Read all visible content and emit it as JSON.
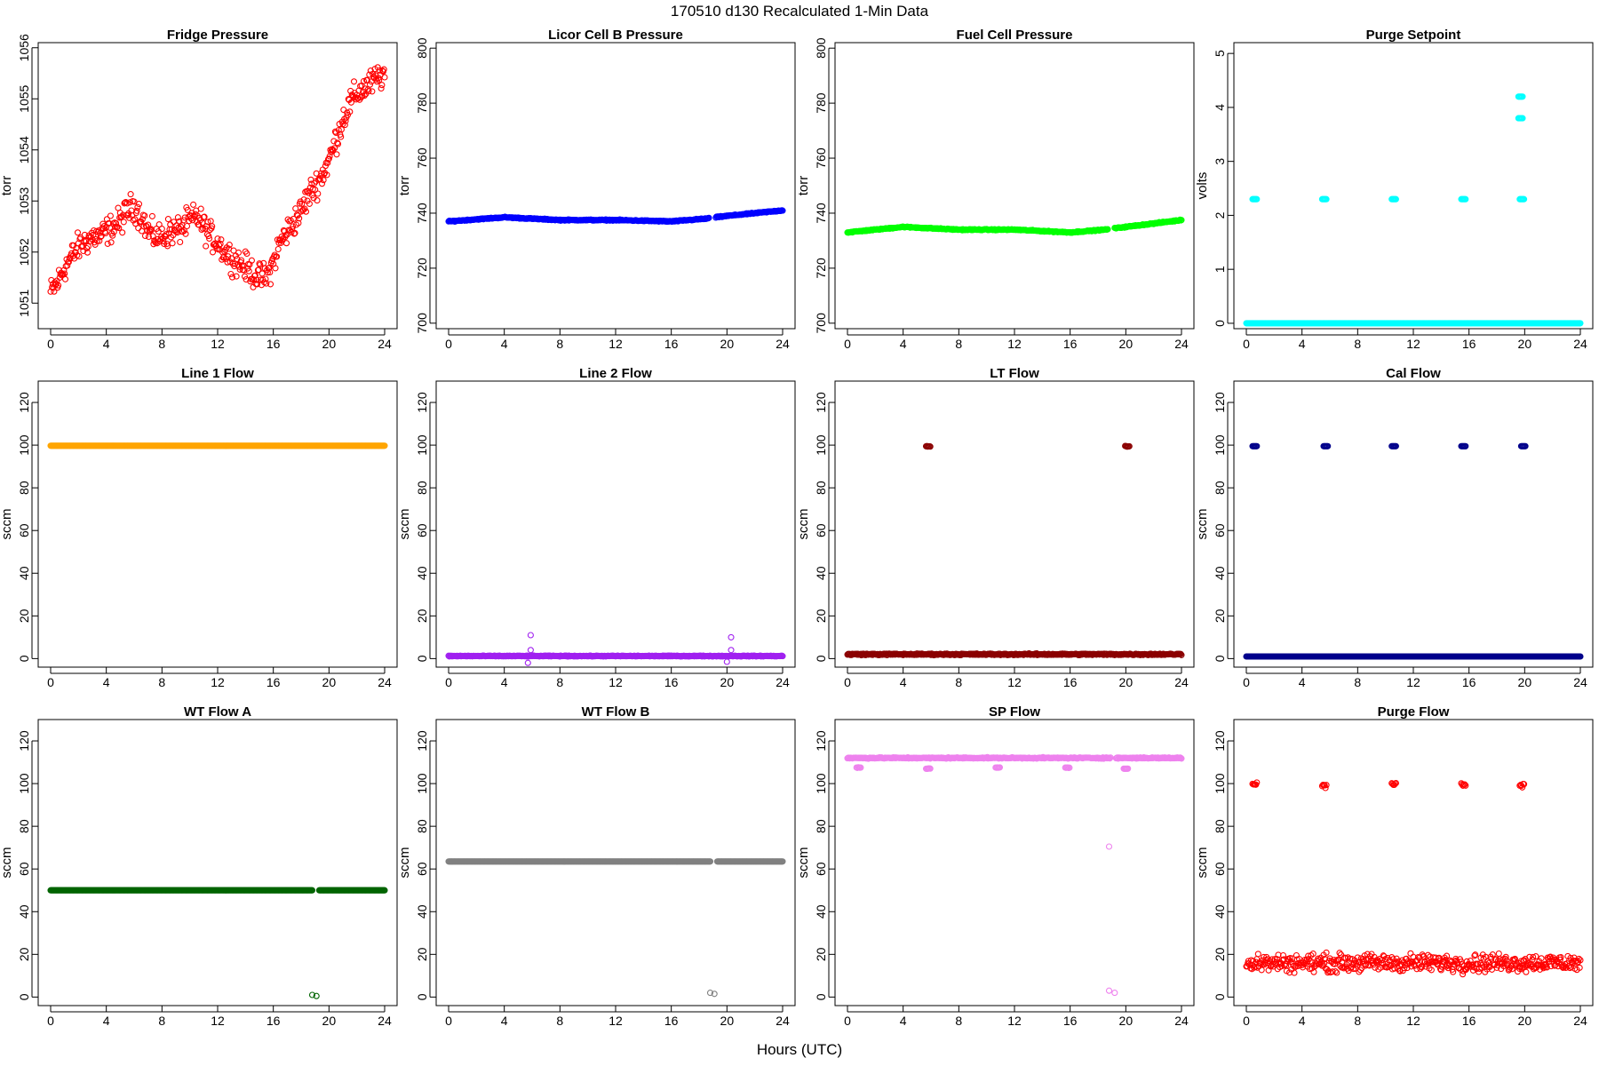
{
  "figure": {
    "title": "170510   d130   Recalculated 1-Min Data",
    "xlabel": "Hours (UTC)"
  },
  "chart_data": [
    {
      "type": "scatter",
      "title": "Fridge Pressure",
      "ylabel": "torr",
      "color": "#ff0000",
      "xlim": [
        0,
        24
      ],
      "xticks": [
        0,
        4,
        8,
        12,
        16,
        20,
        24
      ],
      "ylim": [
        1050.5,
        1056.1
      ],
      "yticks": [
        1051,
        1052,
        1053,
        1054,
        1055,
        1056
      ],
      "x": [
        0,
        0.5,
        1,
        1.5,
        2,
        2.5,
        3,
        3.5,
        4,
        4.5,
        5,
        5.5,
        6,
        6.5,
        7,
        7.5,
        8,
        8.5,
        9,
        9.5,
        10,
        10.5,
        11,
        11.5,
        12,
        12.5,
        13,
        13.5,
        14,
        14.5,
        15,
        15.5,
        16,
        16.5,
        17,
        17.5,
        18,
        18.5,
        19,
        19.5,
        20,
        20.5,
        21,
        21.5,
        22,
        22.5,
        23,
        23.5,
        24
      ],
      "y": [
        1051.2,
        1051.4,
        1051.7,
        1051.9,
        1052.1,
        1052.2,
        1052.3,
        1052.3,
        1052.4,
        1052.5,
        1052.6,
        1052.8,
        1052.9,
        1052.7,
        1052.4,
        1052.3,
        1052.3,
        1052.4,
        1052.4,
        1052.5,
        1052.6,
        1052.7,
        1052.5,
        1052.3,
        1052.2,
        1052.0,
        1051.9,
        1051.8,
        1051.7,
        1051.6,
        1051.5,
        1051.5,
        1051.8,
        1052.2,
        1052.4,
        1052.6,
        1052.8,
        1053.1,
        1053.3,
        1053.5,
        1053.8,
        1054.2,
        1054.6,
        1054.9,
        1055.1,
        1055.2,
        1055.3,
        1055.4,
        1055.5
      ],
      "spread": 0.3
    },
    {
      "type": "scatter",
      "title": "Licor Cell B Pressure",
      "ylabel": "torr",
      "color": "#0000ff",
      "xlim": [
        0,
        24
      ],
      "xticks": [
        0,
        4,
        8,
        12,
        16,
        20,
        24
      ],
      "ylim": [
        698,
        802
      ],
      "yticks": [
        700,
        720,
        740,
        760,
        780,
        800
      ],
      "x": [
        0,
        4,
        8,
        12,
        16,
        18.5,
        19.2,
        20,
        24
      ],
      "y": [
        737,
        738.5,
        737.5,
        737.5,
        737,
        738,
        738.5,
        739,
        741
      ],
      "gap": [
        18.7,
        19.2
      ],
      "spread": 0.2
    },
    {
      "type": "scatter",
      "title": "Fuel Cell Pressure",
      "ylabel": "torr",
      "color": "#00ff00",
      "xlim": [
        0,
        24
      ],
      "xticks": [
        0,
        4,
        8,
        12,
        16,
        20,
        24
      ],
      "ylim": [
        698,
        802
      ],
      "yticks": [
        700,
        720,
        740,
        760,
        780,
        800
      ],
      "x": [
        0,
        4,
        8,
        12,
        16,
        18.5,
        19.2,
        20,
        24
      ],
      "y": [
        733,
        735,
        734,
        734,
        733,
        734,
        734.5,
        735,
        737.5
      ],
      "gap": [
        18.7,
        19.2
      ],
      "spread": 0.2
    },
    {
      "type": "scatter",
      "title": "Purge Setpoint",
      "ylabel": "volts",
      "color": "#00ffff",
      "xlim": [
        0,
        24
      ],
      "xticks": [
        0,
        4,
        8,
        12,
        16,
        20,
        24
      ],
      "ylim": [
        -0.1,
        5.2
      ],
      "yticks": [
        0,
        1,
        2,
        3,
        4,
        5
      ],
      "x": [
        0,
        24
      ],
      "y": [
        0,
        0
      ],
      "clusters": [
        {
          "x": 0.6,
          "y": 2.3
        },
        {
          "x": 5.6,
          "y": 2.3
        },
        {
          "x": 10.6,
          "y": 2.3
        },
        {
          "x": 15.6,
          "y": 2.3
        },
        {
          "x": 19.8,
          "y": 2.3
        },
        {
          "x": 19.7,
          "y": 4.2
        },
        {
          "x": 19.7,
          "y": 3.8
        }
      ],
      "spread": 0
    },
    {
      "type": "scatter",
      "title": "Line 1 Flow",
      "ylabel": "sccm",
      "color": "#ffa500",
      "xlim": [
        0,
        24
      ],
      "xticks": [
        0,
        4,
        8,
        12,
        16,
        20,
        24
      ],
      "ylim": [
        -4,
        130
      ],
      "yticks": [
        0,
        20,
        40,
        60,
        80,
        100,
        120
      ],
      "x": [
        0,
        24
      ],
      "y": [
        99.7,
        99.7
      ],
      "spread": 0
    },
    {
      "type": "scatter",
      "title": "Line 2 Flow",
      "ylabel": "sccm",
      "color": "#a020f0",
      "xlim": [
        0,
        24
      ],
      "xticks": [
        0,
        4,
        8,
        12,
        16,
        20,
        24
      ],
      "ylim": [
        -4,
        130
      ],
      "yticks": [
        0,
        20,
        40,
        60,
        80,
        100,
        120
      ],
      "x": [
        0,
        24
      ],
      "y": [
        1.2,
        1.2
      ],
      "outliers": [
        [
          5.9,
          11
        ],
        [
          5.9,
          4
        ],
        [
          5.7,
          -2
        ],
        [
          20.3,
          10
        ],
        [
          20.3,
          4
        ],
        [
          20,
          -1.5
        ]
      ],
      "spread": 0.2
    },
    {
      "type": "scatter",
      "title": "LT Flow",
      "ylabel": "sccm",
      "color": "#8b0000",
      "xlim": [
        0,
        24
      ],
      "xticks": [
        0,
        4,
        8,
        12,
        16,
        20,
        24
      ],
      "ylim": [
        -4,
        130
      ],
      "yticks": [
        0,
        20,
        40,
        60,
        80,
        100,
        120
      ],
      "x": [
        0,
        24
      ],
      "y": [
        2,
        2
      ],
      "clusters": [
        {
          "x": 5.8,
          "y": 99.5
        },
        {
          "x": 20.1,
          "y": 99.5
        }
      ],
      "spread": 0.4
    },
    {
      "type": "scatter",
      "title": "Cal Flow",
      "ylabel": "sccm",
      "color": "#00008b",
      "xlim": [
        0,
        24
      ],
      "xticks": [
        0,
        4,
        8,
        12,
        16,
        20,
        24
      ],
      "ylim": [
        -4,
        130
      ],
      "yticks": [
        0,
        20,
        40,
        60,
        80,
        100,
        120
      ],
      "x": [
        0,
        24
      ],
      "y": [
        1,
        1
      ],
      "clusters": [
        {
          "x": 0.6,
          "y": 99.5
        },
        {
          "x": 5.7,
          "y": 99.5
        },
        {
          "x": 10.6,
          "y": 99.5
        },
        {
          "x": 15.6,
          "y": 99.5
        },
        {
          "x": 19.9,
          "y": 99.5
        }
      ],
      "spread": 0
    },
    {
      "type": "scatter",
      "title": "WT Flow A",
      "ylabel": "sccm",
      "color": "#006400",
      "xlim": [
        0,
        24
      ],
      "xticks": [
        0,
        4,
        8,
        12,
        16,
        20,
        24
      ],
      "ylim": [
        -4,
        130
      ],
      "yticks": [
        0,
        20,
        40,
        60,
        80,
        100,
        120
      ],
      "x": [
        0,
        24
      ],
      "y": [
        50,
        50
      ],
      "gap": [
        18.8,
        19.3
      ],
      "outliers": [
        [
          18.8,
          1
        ],
        [
          19.1,
          0.5
        ]
      ],
      "spread": 0
    },
    {
      "type": "scatter",
      "title": "WT Flow B",
      "ylabel": "sccm",
      "color": "#808080",
      "xlim": [
        0,
        24
      ],
      "xticks": [
        0,
        4,
        8,
        12,
        16,
        20,
        24
      ],
      "ylim": [
        -4,
        130
      ],
      "yticks": [
        0,
        20,
        40,
        60,
        80,
        100,
        120
      ],
      "x": [
        0,
        24
      ],
      "y": [
        63.5,
        63.5
      ],
      "gap": [
        18.8,
        19.3
      ],
      "outliers": [
        [
          18.8,
          2
        ],
        [
          19.1,
          1.5
        ]
      ],
      "spread": 0
    },
    {
      "type": "scatter",
      "title": "SP Flow",
      "ylabel": "sccm",
      "color": "#ee82ee",
      "xlim": [
        0,
        24
      ],
      "xticks": [
        0,
        4,
        8,
        12,
        16,
        20,
        24
      ],
      "ylim": [
        -4,
        130
      ],
      "yticks": [
        0,
        20,
        40,
        60,
        80,
        100,
        120
      ],
      "x": [
        0,
        24
      ],
      "y": [
        112,
        112
      ],
      "gap": [
        18.9,
        19.3
      ],
      "clusters": [
        {
          "x": 0.8,
          "y": 107.5
        },
        {
          "x": 5.8,
          "y": 107
        },
        {
          "x": 10.8,
          "y": 107.5
        },
        {
          "x": 15.8,
          "y": 107.5
        },
        {
          "x": 20.0,
          "y": 107
        }
      ],
      "outliers": [
        [
          18.8,
          70.5
        ],
        [
          18.8,
          3
        ],
        [
          19.2,
          2
        ]
      ],
      "spread": 0.3
    },
    {
      "type": "scatter",
      "title": "Purge Flow",
      "ylabel": "sccm",
      "color": "#ff0000",
      "xlim": [
        0,
        24
      ],
      "xticks": [
        0,
        4,
        8,
        12,
        16,
        20,
        24
      ],
      "ylim": [
        -4,
        130
      ],
      "yticks": [
        0,
        20,
        40,
        60,
        80,
        100,
        120
      ],
      "x": [
        0,
        24
      ],
      "y": [
        16,
        16
      ],
      "clusters": [
        {
          "x": 0.6,
          "y": 99.5
        },
        {
          "x": 5.6,
          "y": 99
        },
        {
          "x": 10.6,
          "y": 100
        },
        {
          "x": 15.6,
          "y": 99.5
        },
        {
          "x": 19.8,
          "y": 99.5
        }
      ],
      "spread": 4.5
    }
  ]
}
